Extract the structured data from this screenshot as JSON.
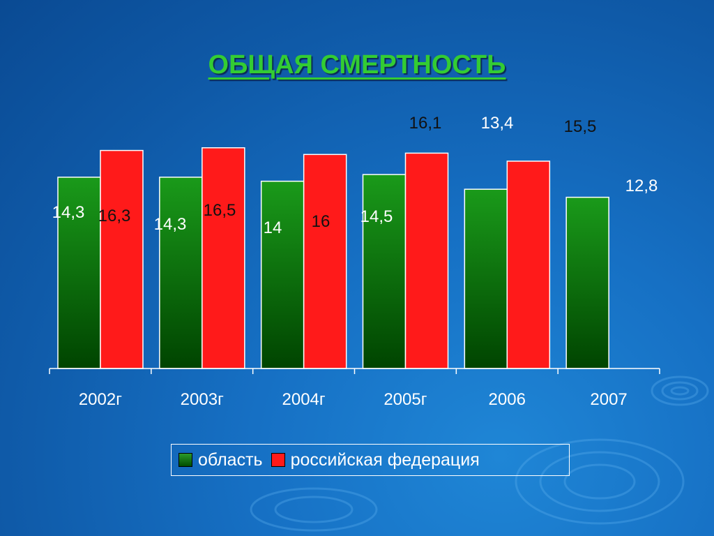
{
  "title": "ОБЩАЯ СМЕРТНОСТЬ",
  "chart_data": {
    "type": "bar",
    "categories": [
      "2002г",
      "2003г",
      "2004г",
      "2005г",
      "2006",
      "2007"
    ],
    "series": [
      {
        "name": "область",
        "color": "#0d7a0d",
        "values": [
          14.3,
          14.3,
          14,
          14.5,
          13.4,
          12.8
        ],
        "labels": [
          "14,3",
          "14,3",
          "14",
          "14,5",
          "13,4",
          "12,8"
        ]
      },
      {
        "name": "российская федерация",
        "color": "#ff1a1a",
        "values": [
          16.3,
          16.5,
          16,
          16.1,
          15.5,
          null
        ],
        "labels": [
          "16,3",
          "16,5",
          "16",
          "16,1",
          "15,5",
          ""
        ]
      }
    ],
    "ylim": [
      0,
      19.2
    ],
    "grid": false,
    "legend": "bottom"
  }
}
